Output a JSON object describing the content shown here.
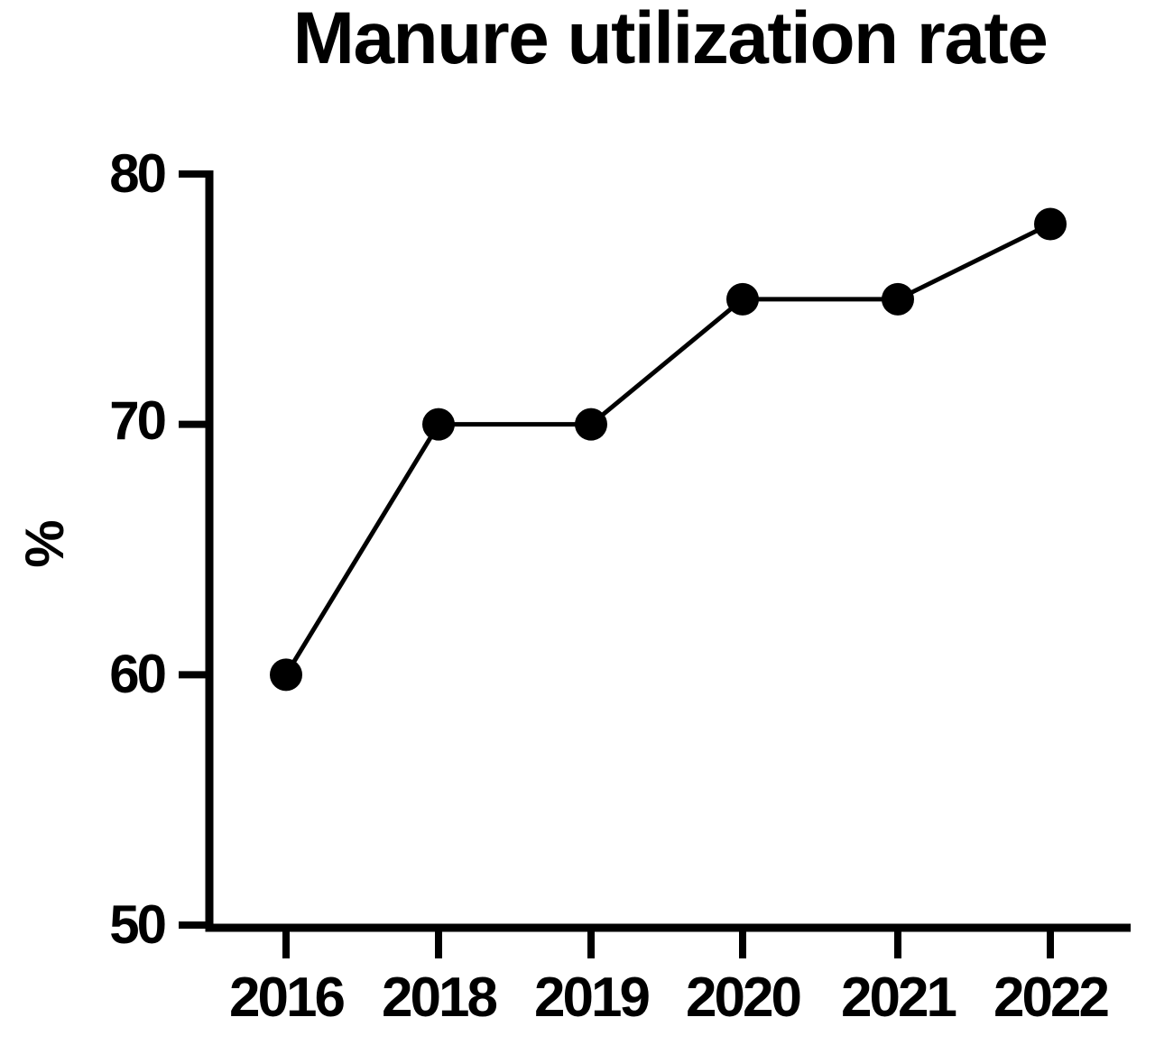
{
  "figure": {
    "background_color": "#ffffff",
    "foreground_color": "#000000"
  },
  "chart_data": {
    "type": "line",
    "title": "Manure utilization rate",
    "categories": [
      "2016",
      "2018",
      "2019",
      "2020",
      "2021",
      "2022"
    ],
    "series": [
      {
        "name": "Manure utilization rate",
        "values": [
          60,
          70,
          70,
          75,
          75,
          78
        ]
      }
    ],
    "xlabel": "",
    "ylabel": "%",
    "yticks": [
      50,
      60,
      70,
      80
    ],
    "ylim": [
      50,
      80
    ],
    "grid": false,
    "legend_visible": false,
    "marker": "filled-circle",
    "line_color": "#000000",
    "marker_color": "#000000",
    "axis_color": "#000000"
  }
}
